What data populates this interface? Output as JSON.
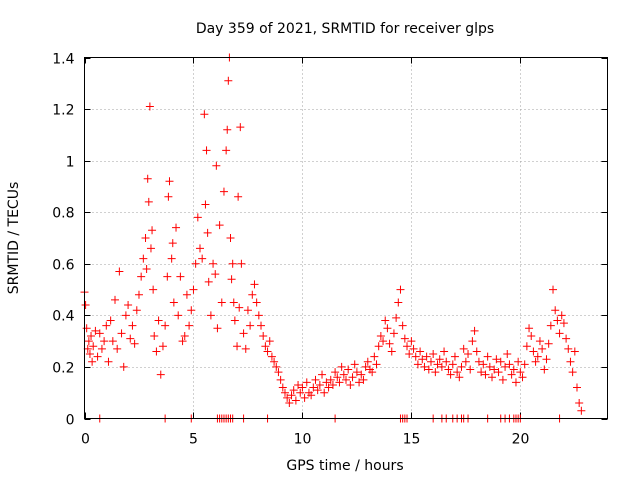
{
  "chart_data": {
    "type": "scatter",
    "title": "Day 359 of 2021, SRMTID for receiver glps",
    "xlabel": "GPS time / hours",
    "ylabel": "SRMTID / TECUs",
    "xlim": [
      0,
      24
    ],
    "ylim": [
      0,
      1.4
    ],
    "xticks": [
      0,
      5,
      10,
      15,
      20
    ],
    "xtick_labels": [
      "0",
      "5",
      "10",
      "15",
      "20"
    ],
    "yticks": [
      0,
      0.2,
      0.4,
      0.6,
      0.8,
      1.0,
      1.2,
      1.4
    ],
    "ytick_labels": [
      "0",
      "0.2",
      "0.4",
      "0.6",
      "0.8",
      "1",
      "1.2",
      "1.4"
    ],
    "grid": true,
    "marker": "+",
    "color": "#ff0000",
    "series": [
      {
        "name": "SRMTID",
        "x": [
          0.0,
          0.05,
          0.1,
          0.15,
          0.2,
          0.25,
          0.3,
          0.35,
          0.4,
          0.5,
          0.6,
          0.7,
          0.8,
          0.9,
          1.0,
          1.1,
          1.2,
          1.3,
          1.4,
          1.5,
          1.6,
          1.7,
          1.8,
          1.9,
          2.0,
          2.1,
          2.2,
          2.3,
          2.4,
          2.5,
          2.6,
          2.7,
          2.8,
          2.85,
          2.9,
          2.95,
          3.0,
          3.05,
          3.1,
          3.15,
          3.2,
          3.3,
          3.4,
          3.5,
          3.6,
          3.7,
          3.8,
          3.85,
          3.9,
          4.0,
          4.05,
          4.1,
          4.2,
          4.3,
          4.4,
          4.5,
          4.6,
          4.7,
          4.8,
          4.9,
          5.0,
          5.1,
          5.2,
          5.3,
          5.4,
          5.5,
          5.55,
          5.6,
          5.65,
          5.7,
          5.8,
          5.9,
          6.0,
          6.05,
          6.1,
          6.2,
          6.3,
          6.4,
          6.5,
          6.55,
          6.6,
          6.65,
          6.7,
          6.75,
          6.8,
          6.85,
          6.9,
          7.0,
          7.05,
          7.1,
          7.15,
          7.2,
          7.3,
          7.4,
          7.5,
          7.6,
          7.7,
          7.8,
          7.9,
          8.0,
          8.1,
          8.2,
          8.3,
          8.4,
          8.5,
          8.6,
          8.7,
          8.8,
          8.9,
          9.0,
          9.1,
          9.2,
          9.3,
          9.4,
          9.5,
          9.6,
          9.7,
          9.8,
          9.9,
          10.0,
          10.1,
          10.2,
          10.3,
          10.4,
          10.5,
          10.6,
          10.7,
          10.8,
          10.9,
          11.0,
          11.1,
          11.2,
          11.3,
          11.4,
          11.5,
          11.6,
          11.7,
          11.8,
          11.9,
          12.0,
          12.1,
          12.2,
          12.3,
          12.4,
          12.5,
          12.6,
          12.7,
          12.8,
          12.9,
          13.0,
          13.1,
          13.2,
          13.3,
          13.4,
          13.5,
          13.6,
          13.7,
          13.8,
          13.9,
          14.0,
          14.1,
          14.2,
          14.3,
          14.4,
          14.5,
          14.6,
          14.7,
          14.8,
          14.9,
          15.0,
          15.1,
          15.2,
          15.3,
          15.4,
          15.5,
          15.6,
          15.7,
          15.8,
          15.9,
          16.0,
          16.1,
          16.2,
          16.3,
          16.4,
          16.5,
          16.6,
          16.7,
          16.8,
          16.9,
          17.0,
          17.1,
          17.2,
          17.3,
          17.4,
          17.5,
          17.6,
          17.7,
          17.8,
          17.9,
          18.0,
          18.1,
          18.2,
          18.3,
          18.4,
          18.5,
          18.6,
          18.7,
          18.8,
          18.9,
          19.0,
          19.1,
          19.2,
          19.3,
          19.4,
          19.5,
          19.6,
          19.7,
          19.8,
          19.9,
          20.0,
          20.1,
          20.2,
          20.3,
          20.4,
          20.5,
          20.6,
          20.7,
          20.8,
          20.9,
          21.0,
          21.1,
          21.2,
          21.3,
          21.4,
          21.5,
          21.6,
          21.7,
          21.8,
          21.9,
          22.0,
          22.1,
          22.2,
          22.3,
          22.4,
          22.5,
          22.6,
          22.7,
          22.8,
          0.7,
          3.7,
          4.9,
          6.1,
          6.2,
          6.3,
          6.4,
          6.5,
          6.6,
          6.7,
          6.8,
          7.3,
          8.4,
          11.5,
          14.5,
          14.6,
          14.7,
          14.8,
          16.0,
          16.4,
          16.6,
          16.9,
          17.1,
          17.3,
          17.4,
          17.6,
          18.5,
          19.1,
          19.3,
          19.5,
          19.7,
          19.8,
          19.9,
          20.0,
          21.8
        ],
        "y": [
          0.49,
          0.44,
          0.35,
          0.27,
          0.3,
          0.25,
          0.32,
          0.22,
          0.28,
          0.34,
          0.24,
          0.33,
          0.27,
          0.3,
          0.36,
          0.22,
          0.38,
          0.3,
          0.46,
          0.27,
          0.57,
          0.33,
          0.2,
          0.4,
          0.44,
          0.31,
          0.36,
          0.29,
          0.42,
          0.48,
          0.55,
          0.62,
          0.7,
          0.58,
          0.93,
          0.84,
          1.21,
          0.66,
          0.73,
          0.5,
          0.32,
          0.26,
          0.38,
          0.17,
          0.28,
          0.36,
          0.55,
          0.86,
          0.92,
          0.62,
          0.68,
          0.45,
          0.74,
          0.4,
          0.55,
          0.3,
          0.32,
          0.48,
          0.36,
          0.42,
          0.5,
          0.6,
          0.78,
          0.66,
          0.62,
          1.18,
          0.83,
          1.04,
          0.72,
          0.53,
          0.4,
          0.6,
          0.56,
          0.98,
          0.35,
          0.75,
          0.45,
          0.88,
          1.04,
          1.12,
          1.31,
          1.4,
          0.7,
          0.54,
          0.6,
          0.45,
          0.38,
          0.28,
          0.86,
          0.43,
          1.13,
          0.6,
          0.33,
          0.27,
          0.42,
          0.36,
          0.48,
          0.52,
          0.45,
          0.4,
          0.36,
          0.32,
          0.28,
          0.26,
          0.3,
          0.24,
          0.22,
          0.2,
          0.18,
          0.15,
          0.12,
          0.1,
          0.08,
          0.06,
          0.09,
          0.11,
          0.07,
          0.13,
          0.1,
          0.12,
          0.08,
          0.14,
          0.1,
          0.09,
          0.12,
          0.15,
          0.11,
          0.13,
          0.17,
          0.1,
          0.14,
          0.12,
          0.15,
          0.13,
          0.18,
          0.16,
          0.14,
          0.2,
          0.17,
          0.15,
          0.19,
          0.13,
          0.16,
          0.21,
          0.18,
          0.14,
          0.17,
          0.15,
          0.2,
          0.22,
          0.19,
          0.18,
          0.24,
          0.21,
          0.28,
          0.32,
          0.3,
          0.38,
          0.35,
          0.29,
          0.26,
          0.33,
          0.39,
          0.45,
          0.5,
          0.36,
          0.31,
          0.28,
          0.25,
          0.3,
          0.27,
          0.24,
          0.21,
          0.26,
          0.23,
          0.2,
          0.24,
          0.19,
          0.22,
          0.25,
          0.18,
          0.21,
          0.23,
          0.2,
          0.26,
          0.22,
          0.19,
          0.17,
          0.21,
          0.24,
          0.18,
          0.16,
          0.2,
          0.27,
          0.22,
          0.25,
          0.19,
          0.3,
          0.34,
          0.26,
          0.22,
          0.18,
          0.21,
          0.17,
          0.24,
          0.2,
          0.16,
          0.19,
          0.23,
          0.18,
          0.22,
          0.15,
          0.2,
          0.25,
          0.21,
          0.17,
          0.19,
          0.14,
          0.22,
          0.18,
          0.16,
          0.21,
          0.28,
          0.35,
          0.32,
          0.26,
          0.22,
          0.24,
          0.3,
          0.27,
          0.19,
          0.23,
          0.29,
          0.36,
          0.5,
          0.42,
          0.38,
          0.33,
          0.4,
          0.37,
          0.31,
          0.27,
          0.22,
          0.18,
          0.26,
          0.12,
          0.06,
          0.03,
          0.0,
          0.0,
          0.0,
          0.0,
          0.0,
          0.0,
          0.0,
          0.0,
          0.0,
          0.0,
          0.0,
          0.0,
          0.0,
          0.0,
          0.0,
          0.0,
          0.0,
          0.0,
          0.0,
          0.0,
          0.0,
          0.0,
          0.0,
          0.0,
          0.0,
          0.0,
          0.0,
          0.0,
          0.0,
          0.0,
          0.0,
          0.0,
          0.0,
          0.0,
          0.0
        ]
      }
    ]
  }
}
